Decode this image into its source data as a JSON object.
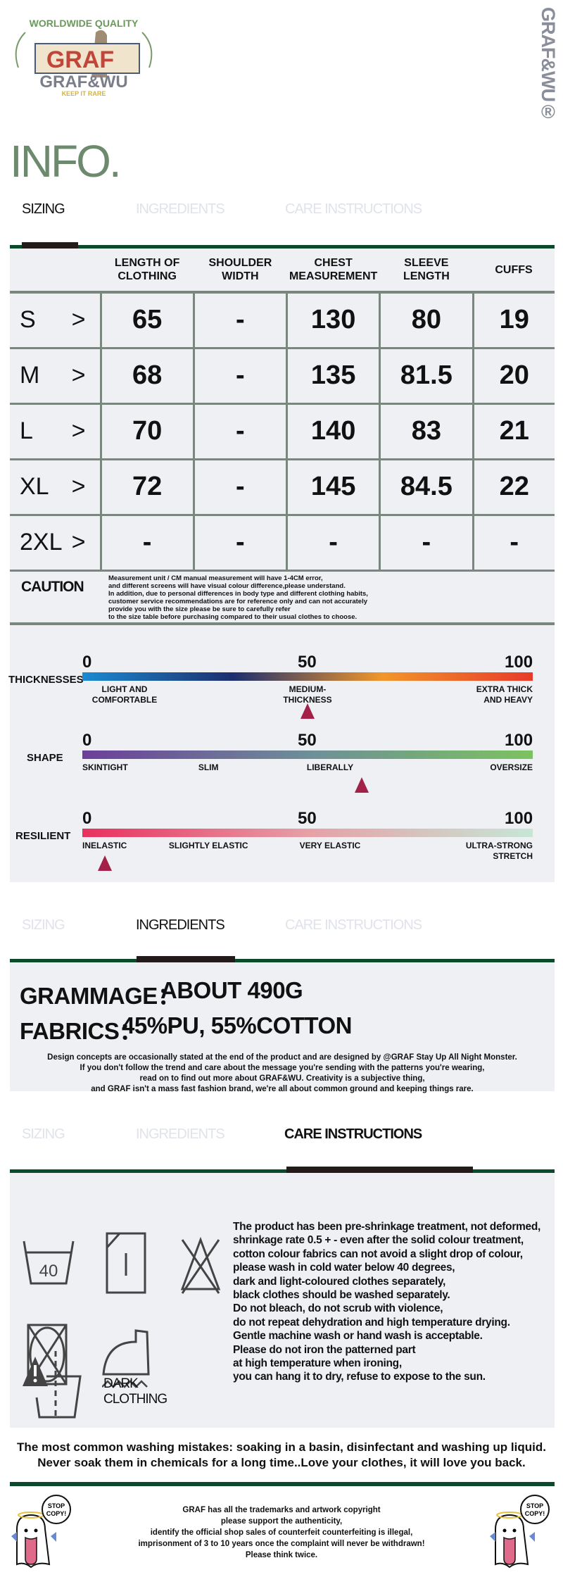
{
  "brand": {
    "logo_top": "WORLDWIDE QUALITY",
    "logo_box": "GRAF",
    "logo_name": "GRAF&WU",
    "logo_tagline": "KEEP IT RARE",
    "vertical_mark": "GRAF&WU®"
  },
  "page_title": "INFO.",
  "tabs": [
    "SIZING",
    "INGREDIENTS",
    "CARE INSTRUCTIONS"
  ],
  "size_table": {
    "headers": [
      "",
      "LENGTH OF CLOTHING",
      "SHOULDER WIDTH",
      "CHEST MEASUREMENT",
      "SLEEVE LENGTH",
      "CUFFS"
    ],
    "rows": [
      {
        "size": "S",
        "cells": [
          "65",
          "-",
          "130",
          "80",
          "19"
        ]
      },
      {
        "size": "M",
        "cells": [
          "68",
          "-",
          "135",
          "81.5",
          "20"
        ]
      },
      {
        "size": "L",
        "cells": [
          "70",
          "-",
          "140",
          "83",
          "21"
        ]
      },
      {
        "size": "XL",
        "cells": [
          "72",
          "-",
          "145",
          "84.5",
          "22"
        ]
      },
      {
        "size": "2XL",
        "cells": [
          "-",
          "-",
          "-",
          "-",
          "-"
        ]
      }
    ],
    "arrow": ">"
  },
  "caution": {
    "title": "CAUTION",
    "lines": [
      "Measurement unit / CM manual measurement will have 1-4CM error,",
      "and different screens will have visual colour difference,please understand.",
      "In addition, due to personal differences in body type and different clothing habits,",
      "customer service recommendations are for reference only and can not accurately",
      "provide you with the size please be sure to carefully refer",
      "to the size table before purchasing compared to their usual clothes to choose."
    ]
  },
  "scales": [
    {
      "name": "THICKNESSES",
      "ticks": [
        "0",
        "50",
        "100"
      ],
      "labels": [
        "LIGHT AND\nCOMFORTABLE",
        "MEDIUM-THICKNESS",
        "EXTRA THICK\nAND HEAVY"
      ],
      "value": 50,
      "gradient": [
        "#1b8ad2",
        "#1c2f6e",
        "#f1962b",
        "#e83a2a"
      ]
    },
    {
      "name": "SHAPE",
      "ticks": [
        "0",
        "50",
        "100"
      ],
      "labels": [
        "SKINTIGHT",
        "SLIM",
        "LIBERALLY",
        "OVERSIZE"
      ],
      "value": 62,
      "gradient": [
        "#6b3f99",
        "#6e8e98",
        "#7cc260"
      ]
    },
    {
      "name": "RESILIENT",
      "ticks": [
        "0",
        "50",
        "100"
      ],
      "labels": [
        "INELASTIC",
        "SLIGHTLY ELASTIC",
        "VERY ELASTIC",
        "ULTRA-STRONG\nSTRETCH"
      ],
      "value": 5,
      "gradient": [
        "#e8305e",
        "#e6a0a6",
        "#c6e6d6"
      ]
    }
  ],
  "ingredients": {
    "grammage_label": "GRAMMAGE：",
    "grammage_value": "ABOUT 490G",
    "fabrics_label": "FABRICS：",
    "fabrics_value": "45%PU, 55%COTTON",
    "note": [
      "Design concepts are occasionally stated at the end of the product and are designed by @GRAF Stay Up All Night Monster.",
      "If you don't follow the trend and care about the message you're sending with the patterns you're wearing,",
      "read on to find out more about GRAF&WU. Creativity is a subjective thing,",
      "and GRAF isn't a mass fast fashion brand, we're all about common ground and keeping things rare."
    ]
  },
  "care": {
    "wash_temp": "40",
    "dark_label": [
      "DARK",
      "CLOTHING"
    ],
    "lines": [
      "The product has been pre-shrinkage treatment, not deformed,",
      "shrinkage rate 0.5 + - even after the solid colour treatment,",
      "cotton colour fabrics can not avoid a slight drop of colour,",
      "please wash in cold water below 40 degrees,",
      "dark and light-coloured clothes separately,",
      "black clothes should be washed separately.",
      "Do not bleach, do not scrub with violence,",
      "do not repeat dehydration and high temperature drying.",
      "Gentle machine wash or hand wash is acceptable.",
      "Please do not iron the patterned part",
      "at high temperature when ironing,",
      "you can hang it to dry, refuse to expose to the sun."
    ],
    "mistakes": [
      "The most common washing mistakes: soaking in a basin, disinfectant and washing up liquid.",
      "Never soak them in chemicals for a long time..Love your clothes, it will love you back."
    ]
  },
  "footer": {
    "mascot_bubble": [
      "STOP",
      "COPY!"
    ],
    "lines": [
      "GRAF has all the trademarks and artwork copyright",
      "please support the authenticity,",
      "identify the official shop sales of counterfeit counterfeiting is illegal,",
      "imprisonment of 3 to 10 years once the complaint will never be withdrawn!",
      "Please think twice."
    ]
  },
  "colors": {
    "accent_green": "#0d4a2b",
    "title_green": "#6e8a6e",
    "panel": "#eef0f4",
    "marker": "#a32149"
  }
}
